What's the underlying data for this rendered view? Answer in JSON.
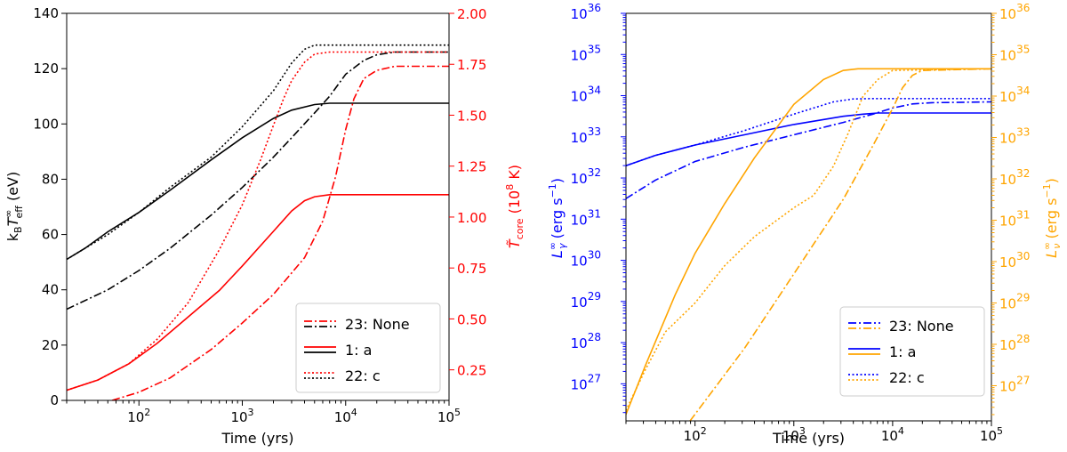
{
  "chart_data": [
    {
      "type": "line",
      "xlabel": "Time (yrs)",
      "xscale": "log",
      "xlim": [
        20,
        100000
      ],
      "xticks": [
        "10",
        "2",
        "10",
        "3",
        "10",
        "4",
        "10",
        "5"
      ],
      "ylabel_left": "k_B T_eff^∞ (eV)",
      "ylim_left": [
        0,
        140
      ],
      "yticks_left": [
        "0",
        "20",
        "40",
        "60",
        "80",
        "100",
        "120",
        "140"
      ],
      "ylabel_right": "T̃_core (10^8 K)",
      "ylim_right": [
        0.1,
        2.0
      ],
      "yticks_right": [
        "0.25",
        "0.50",
        "0.75",
        "1.00",
        "1.25",
        "1.50",
        "1.75",
        "2.00"
      ],
      "left_color": "#000000",
      "right_color": "#ff0000",
      "legend": {
        "placement": "lower-right",
        "entries": [
          "23: None",
          "  1: a",
          "22: c"
        ]
      },
      "series": [
        {
          "axis": "left",
          "color": "#000000",
          "style": "solid",
          "x": [
            20,
            30,
            50,
            100,
            200,
            500,
            1000,
            2000,
            3000,
            5000,
            7000,
            10000,
            20000,
            100000
          ],
          "y": [
            51,
            55,
            61,
            68,
            76,
            87,
            95,
            102,
            105,
            107,
            107.5,
            107.5,
            107.5,
            107.5
          ]
        },
        {
          "axis": "left",
          "color": "#000000",
          "style": "dashdot",
          "x": [
            20,
            50,
            100,
            200,
            500,
            1000,
            2000,
            3000,
            5000,
            7000,
            10000,
            15000,
            20000,
            30000,
            100000
          ],
          "y": [
            33,
            40,
            47,
            55,
            67,
            77,
            88,
            95,
            104,
            110,
            118,
            123,
            125,
            126,
            126
          ]
        },
        {
          "axis": "left",
          "color": "#000000",
          "style": "dotted",
          "x": [
            20,
            30,
            50,
            100,
            200,
            500,
            1000,
            2000,
            3000,
            4000,
            5000,
            7000,
            10000,
            100000
          ],
          "y": [
            51,
            55,
            60,
            68,
            77,
            88,
            99,
            112,
            122,
            127,
            128.5,
            128.5,
            128.5,
            128.5
          ]
        },
        {
          "axis": "right",
          "color": "#ff0000",
          "style": "solid",
          "x": [
            20,
            40,
            80,
            150,
            300,
            600,
            1000,
            2000,
            3000,
            4000,
            5000,
            7000,
            10000,
            100000
          ],
          "y": [
            0.15,
            0.2,
            0.28,
            0.38,
            0.51,
            0.64,
            0.76,
            0.93,
            1.03,
            1.08,
            1.1,
            1.11,
            1.11,
            1.11
          ]
        },
        {
          "axis": "right",
          "color": "#ff0000",
          "style": "dashdot",
          "x": [
            55,
            100,
            200,
            500,
            1000,
            2000,
            4000,
            6000,
            8000,
            10000,
            12000,
            15000,
            20000,
            30000,
            100000
          ],
          "y": [
            0.1,
            0.14,
            0.21,
            0.35,
            0.48,
            0.62,
            0.8,
            0.98,
            1.2,
            1.43,
            1.58,
            1.68,
            1.72,
            1.74,
            1.74
          ]
        },
        {
          "axis": "right",
          "color": "#ff0000",
          "style": "dotted",
          "x": [
            20,
            40,
            80,
            150,
            300,
            600,
            1000,
            1500,
            2000,
            2500,
            3000,
            4000,
            5000,
            7000,
            10000,
            100000
          ],
          "y": [
            0.15,
            0.2,
            0.28,
            0.4,
            0.58,
            0.84,
            1.06,
            1.28,
            1.45,
            1.58,
            1.67,
            1.76,
            1.8,
            1.81,
            1.81,
            1.81
          ]
        }
      ]
    },
    {
      "type": "line",
      "xlabel": "Time (yrs)",
      "xscale": "log",
      "xlim": [
        20,
        100000
      ],
      "xticks": [
        "10",
        "2",
        "10",
        "3",
        "10",
        "4",
        "10",
        "5"
      ],
      "ylabel_left": "L_γ^∞ (erg s^-1)",
      "yscale_left": "log",
      "ylim_left_exp": [
        26.1,
        36.0
      ],
      "yticks_left_exp": [
        "27",
        "28",
        "29",
        "30",
        "31",
        "32",
        "33",
        "34",
        "35",
        "36"
      ],
      "ylabel_right": "L_ν^∞ (erg s^-1)",
      "yscale_right": "log",
      "ylim_right_exp": [
        26.15,
        36.0
      ],
      "yticks_right_exp": [
        "27",
        "28",
        "29",
        "30",
        "31",
        "32",
        "33",
        "34",
        "35",
        "36"
      ],
      "left_color": "#0000ff",
      "right_color": "#ffa500",
      "legend": {
        "placement": "lower-right",
        "entries": [
          "23: None",
          "  1: a",
          "22: c"
        ]
      },
      "series": [
        {
          "axis": "left",
          "color": "#0000ff",
          "style": "solid",
          "x_exp": [
            1.3,
            1.6,
            2.0,
            2.5,
            3.0,
            3.5,
            3.7,
            3.85,
            4.0,
            5.0
          ],
          "y_exp": [
            32.3,
            32.55,
            32.8,
            33.05,
            33.3,
            33.5,
            33.55,
            33.58,
            33.58,
            33.58
          ]
        },
        {
          "axis": "left",
          "color": "#0000ff",
          "style": "dashdot",
          "x_exp": [
            1.3,
            1.6,
            2.0,
            2.5,
            3.0,
            3.5,
            3.8,
            4.0,
            4.2,
            4.4,
            5.0
          ],
          "y_exp": [
            31.5,
            31.95,
            32.4,
            32.75,
            33.05,
            33.35,
            33.55,
            33.7,
            33.8,
            33.83,
            33.85
          ]
        },
        {
          "axis": "left",
          "color": "#0000ff",
          "style": "dotted",
          "x_exp": [
            1.3,
            1.6,
            2.0,
            2.5,
            3.0,
            3.4,
            3.6,
            3.8,
            5.0
          ],
          "y_exp": [
            32.3,
            32.55,
            32.8,
            33.15,
            33.55,
            33.85,
            33.92,
            33.93,
            33.93
          ]
        },
        {
          "axis": "right",
          "color": "#ffa500",
          "style": "solid",
          "x_exp": [
            1.3,
            1.5,
            1.8,
            2.0,
            2.3,
            2.6,
            3.0,
            3.3,
            3.5,
            3.65,
            3.8,
            5.0
          ],
          "y_exp": [
            26.3,
            27.5,
            29.2,
            30.2,
            31.4,
            32.5,
            33.8,
            34.4,
            34.62,
            34.66,
            34.66,
            34.66
          ]
        },
        {
          "axis": "right",
          "color": "#ffa500",
          "style": "dashdot",
          "x_exp": [
            1.95,
            2.5,
            3.0,
            3.5,
            3.8,
            4.0,
            4.1,
            4.2,
            4.3,
            5.0
          ],
          "y_exp": [
            26.15,
            27.9,
            29.7,
            31.5,
            32.8,
            33.7,
            34.2,
            34.5,
            34.62,
            34.66
          ]
        },
        {
          "axis": "right",
          "color": "#ffa500",
          "style": "dotted",
          "x_exp": [
            1.3,
            1.5,
            1.7,
            1.85,
            2.0,
            2.3,
            2.6,
            3.0,
            3.2,
            3.4,
            3.55,
            3.7,
            3.85,
            4.0,
            5.0
          ],
          "y_exp": [
            26.4,
            27.4,
            28.3,
            28.65,
            29.0,
            29.9,
            30.6,
            31.3,
            31.6,
            32.3,
            33.1,
            34.0,
            34.4,
            34.62,
            34.66
          ]
        }
      ]
    }
  ]
}
